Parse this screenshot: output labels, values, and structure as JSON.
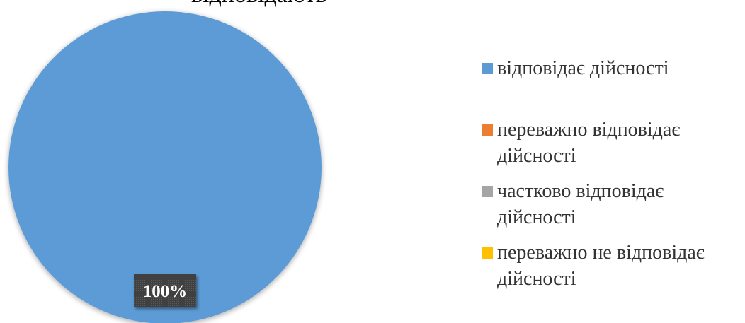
{
  "header": {
    "title_fragment": "відповідають"
  },
  "chart_data": {
    "type": "pie",
    "categories": [
      "відповідає дійсності",
      "переважно відповідає дійсності",
      "частково відповідає дійсності",
      "переважно не відповідає дійсності"
    ],
    "values": [
      100,
      0,
      0,
      0
    ],
    "unit": "%",
    "colors": [
      "#5b9bd5",
      "#ed7d31",
      "#a5a5a5",
      "#ffc000"
    ],
    "data_labels": [
      "100%"
    ],
    "legend_position": "right"
  }
}
